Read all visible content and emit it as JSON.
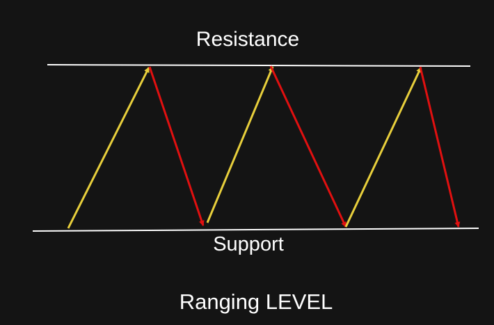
{
  "labels": {
    "resistance": "Resistance",
    "support": "Support",
    "title": "Ranging LEVEL"
  },
  "colors": {
    "background": "#141414",
    "level_line": "#ffffff",
    "up_arrow": "#e8cf3c",
    "down_arrow": "#e11010",
    "text": "#ffffff"
  },
  "arrows": {
    "up_count": 3,
    "down_count": 3
  }
}
